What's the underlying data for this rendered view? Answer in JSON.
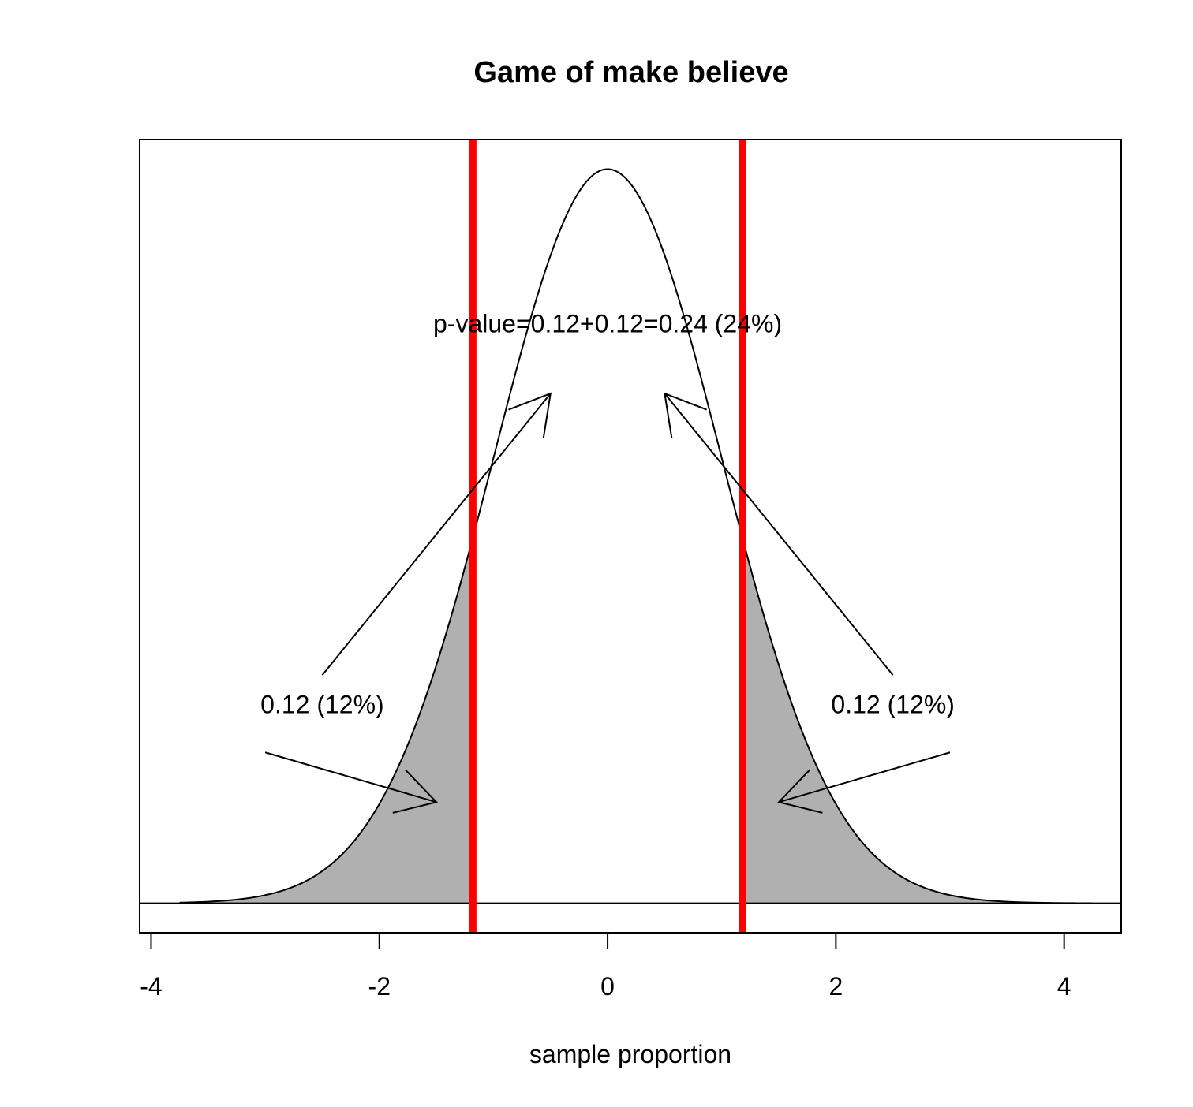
{
  "chart_data": {
    "type": "area",
    "title": "Game of make believe",
    "xlabel": "sample proportion",
    "ylabel": "",
    "xlim": [
      -4.1,
      4.5
    ],
    "ylim": [
      -0.016,
      0.415
    ],
    "x_ticks": [
      -4,
      -2,
      0,
      2,
      4
    ],
    "x_tick_labels": [
      "-4",
      "-2",
      "0",
      "2",
      "4"
    ],
    "y_axis_shown": false,
    "curve": {
      "distribution": "normal",
      "mean": 0,
      "sd": 1,
      "x_range": [
        -3.75,
        4.25
      ],
      "baseline": 0
    },
    "cutoffs": [
      -1.18,
      1.18
    ],
    "shaded_tails": {
      "left_below": -1.18,
      "right_above": 1.18,
      "fill": "#b0b0b0"
    },
    "reference_line_color": "#ff0000",
    "annotations": [
      {
        "text": "p-value=0.12+0.12=0.24 (24%)",
        "x": 0,
        "y": 0.315
      },
      {
        "text": "0.12 (12%)",
        "x": -2.5,
        "y": 0.108
      },
      {
        "text": "0.12 (12%)",
        "x": 2.5,
        "y": 0.108
      }
    ],
    "arrows": [
      {
        "from": [
          -2.5,
          0.124
        ],
        "to": [
          -0.5,
          0.277
        ]
      },
      {
        "from": [
          2.5,
          0.124
        ],
        "to": [
          0.5,
          0.277
        ]
      },
      {
        "from": [
          -3.0,
          0.082
        ],
        "to": [
          -1.5,
          0.055
        ]
      },
      {
        "from": [
          3.0,
          0.082
        ],
        "to": [
          1.5,
          0.055
        ]
      }
    ]
  }
}
